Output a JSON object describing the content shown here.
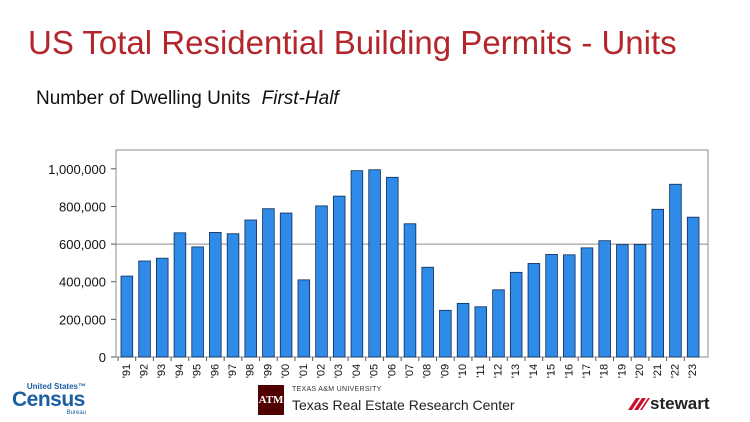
{
  "title": "US Total Residential Building Permits - Units",
  "subtitle": {
    "main": "Number of Dwelling Units",
    "italic": "First-Half"
  },
  "colors": {
    "title": "#b3262c",
    "bar": "#2f8be8",
    "bar_border": "#0d2b55"
  },
  "chart_data": {
    "type": "bar",
    "categories": [
      "'91",
      "'92",
      "'93",
      "'94",
      "'95",
      "'96",
      "'97",
      "'98",
      "'99",
      "'00",
      "'01",
      "'02",
      "'03",
      "'04",
      "'05",
      "'06",
      "'07",
      "'08",
      "'09",
      "'10",
      "'11",
      "'12",
      "'13",
      "'14",
      "'15",
      "'16",
      "'17",
      "'18",
      "'19",
      "'20",
      "'21",
      "'22",
      "'23"
    ],
    "values": [
      430000,
      510000,
      525000,
      660000,
      585000,
      662000,
      655000,
      728000,
      788000,
      765000,
      410000,
      803000,
      855000,
      990000,
      995000,
      955000,
      708000,
      477000,
      248000,
      285000,
      267000,
      357000,
      450000,
      497000,
      545000,
      543000,
      580000,
      618000,
      597000,
      598000,
      785000,
      918000,
      743000
    ],
    "ylim": [
      0,
      1100000
    ],
    "yticks": [
      0,
      200000,
      400000,
      600000,
      800000,
      1000000
    ],
    "ytick_labels": [
      "0",
      "200,000",
      "400,000",
      "600,000",
      "800,000",
      "1,000,000"
    ],
    "grid": "horizontal gridline at 600,000 only"
  },
  "logos": {
    "census": {
      "top": "United States™",
      "main": "Census",
      "bottom": "Bureau"
    },
    "tamu": {
      "mark": "ATM",
      "university": "TEXAS A&M UNIVERSITY",
      "center": "Texas Real Estate Research Center"
    },
    "stewart": {
      "word": "stewart"
    }
  }
}
